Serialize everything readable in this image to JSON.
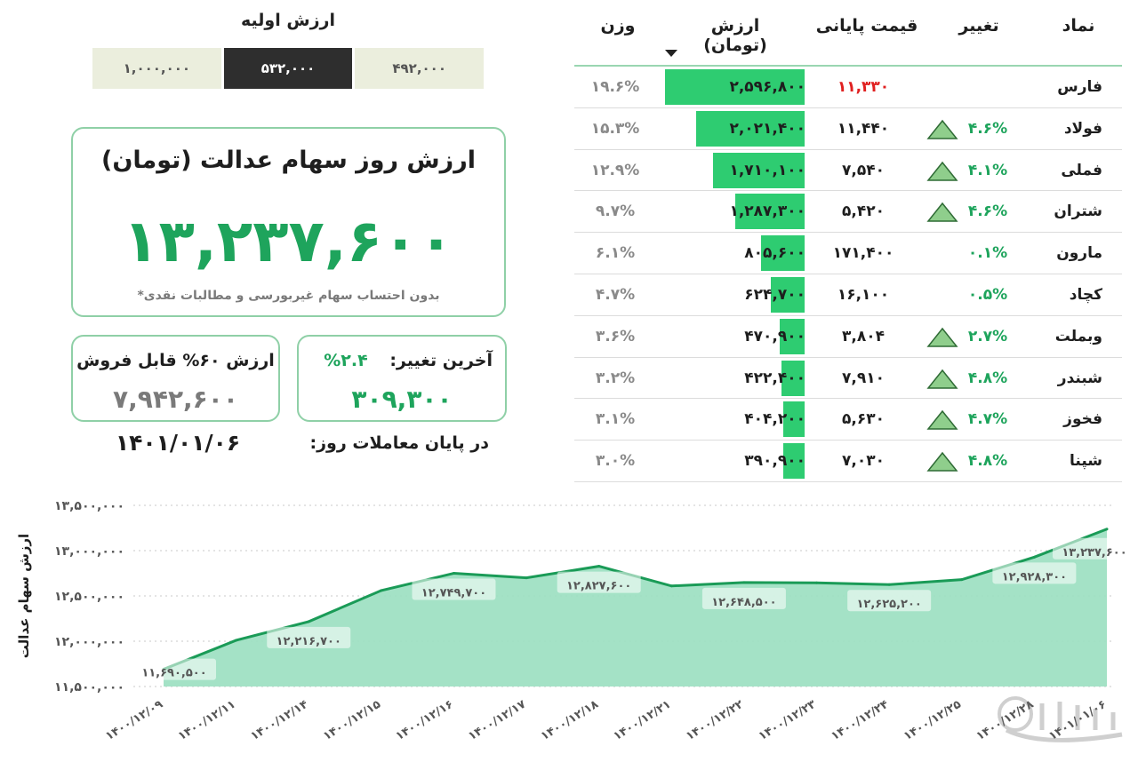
{
  "initial_value": {
    "title": "ارزش اولیه",
    "options": [
      "۱,۰۰۰,۰۰۰",
      "۵۳۲,۰۰۰",
      "۴۹۲,۰۰۰"
    ],
    "selected": "۵۳۲,۰۰۰"
  },
  "main_card": {
    "title": "ارزش روز سهام عدالت (تومان)",
    "value": "۱۳,۲۳۷,۶۰۰",
    "note": "*بدون احتساب سهام غیربورسی و مطالبات نقدی"
  },
  "change_card": {
    "label": "آخرین تغییر:",
    "percent": "۲.۴%",
    "value": "۳۰۹,۳۰۰"
  },
  "sellable_card": {
    "label": "ارزش ۶۰% قابل فروش",
    "value": "۷,۹۴۲,۶۰۰"
  },
  "end_of_day": {
    "label": "در پایان معاملات روز:",
    "date": "۱۴۰۱/۰۱/۰۶"
  },
  "table": {
    "headers": {
      "symbol": "نماد",
      "change": "تغییر",
      "close": "قیمت پایانی",
      "value": "ارزش (تومان)",
      "weight": "وزن"
    },
    "sorted_by": "value",
    "rows": [
      {
        "symbol": "فارس",
        "change": "",
        "arrow": false,
        "close": "۱۱,۳۳۰",
        "close_negative": true,
        "value": "۲,۵۹۶,۸۰۰",
        "value_num": 2596800,
        "weight": "۱۹.۶%"
      },
      {
        "symbol": "فولاد",
        "change": "۴.۶%",
        "arrow": true,
        "close": "۱۱,۴۴۰",
        "close_negative": false,
        "value": "۲,۰۲۱,۴۰۰",
        "value_num": 2021400,
        "weight": "۱۵.۳%"
      },
      {
        "symbol": "فملی",
        "change": "۴.۱%",
        "arrow": true,
        "close": "۷,۵۴۰",
        "close_negative": false,
        "value": "۱,۷۱۰,۱۰۰",
        "value_num": 1710100,
        "weight": "۱۲.۹%"
      },
      {
        "symbol": "شتران",
        "change": "۴.۶%",
        "arrow": true,
        "close": "۵,۴۲۰",
        "close_negative": false,
        "value": "۱,۲۸۷,۳۰۰",
        "value_num": 1287300,
        "weight": "۹.۷%"
      },
      {
        "symbol": "مارون",
        "change": "۰.۱%",
        "arrow": false,
        "close": "۱۷۱,۴۰۰",
        "close_negative": false,
        "value": "۸۰۵,۶۰۰",
        "value_num": 805600,
        "weight": "۶.۱%"
      },
      {
        "symbol": "کچاد",
        "change": "۰.۵%",
        "arrow": false,
        "close": "۱۶,۱۰۰",
        "close_negative": false,
        "value": "۶۲۴,۷۰۰",
        "value_num": 624700,
        "weight": "۴.۷%"
      },
      {
        "symbol": "وبملت",
        "change": "۲.۷%",
        "arrow": true,
        "close": "۳,۸۰۴",
        "close_negative": false,
        "value": "۴۷۰,۹۰۰",
        "value_num": 470900,
        "weight": "۳.۶%"
      },
      {
        "symbol": "شبندر",
        "change": "۴.۸%",
        "arrow": true,
        "close": "۷,۹۱۰",
        "close_negative": false,
        "value": "۴۲۲,۴۰۰",
        "value_num": 422400,
        "weight": "۳.۲%"
      },
      {
        "symbol": "فخوز",
        "change": "۴.۷%",
        "arrow": true,
        "close": "۵,۶۳۰",
        "close_negative": false,
        "value": "۴۰۴,۲۰۰",
        "value_num": 404200,
        "weight": "۳.۱%"
      },
      {
        "symbol": "شپنا",
        "change": "۴.۸%",
        "arrow": true,
        "close": "۷,۰۳۰",
        "close_negative": false,
        "value": "۳۹۰,۹۰۰",
        "value_num": 390900,
        "weight": "۳.۰%"
      }
    ]
  },
  "colors": {
    "accent_green": "#1ea45c",
    "bar_green": "#2ecc71",
    "line_green": "#1a9b57",
    "area_green": "#9fe0c3",
    "negative_red": "#e02020",
    "arrow_green": "#8fce8c"
  },
  "watermark": "ساعد نیوز",
  "chart_data": {
    "type": "area",
    "ylabel": "ارزش سهام عدالت",
    "ylim": [
      11500000,
      13500000
    ],
    "yticks": [
      11500000,
      12000000,
      12500000,
      13000000,
      13500000
    ],
    "ytick_labels": [
      "۱۱,۵۰۰,۰۰۰",
      "۱۲,۰۰۰,۰۰۰",
      "۱۲,۵۰۰,۰۰۰",
      "۱۳,۰۰۰,۰۰۰",
      "۱۳,۵۰۰,۰۰۰"
    ],
    "x": [
      "۱۴۰۰/۱۲/۰۹",
      "۱۴۰۰/۱۲/۱۱",
      "۱۴۰۰/۱۲/۱۴",
      "۱۴۰۰/۱۲/۱۵",
      "۱۴۰۰/۱۲/۱۶",
      "۱۴۰۰/۱۲/۱۷",
      "۱۴۰۰/۱۲/۱۸",
      "۱۴۰۰/۱۲/۲۱",
      "۱۴۰۰/۱۲/۲۲",
      "۱۴۰۰/۱۲/۲۳",
      "۱۴۰۰/۱۲/۲۴",
      "۱۴۰۰/۱۲/۲۵",
      "۱۴۰۰/۱۲/۲۸",
      "۱۴۰۱/۰۱/۰۶"
    ],
    "values": [
      11690500,
      12010000,
      12216700,
      12560000,
      12749700,
      12700000,
      12827600,
      12610000,
      12648500,
      12645000,
      12625200,
      12680000,
      12928300,
      13237600
    ],
    "data_labels": [
      {
        "index": 0,
        "text": "۱۱,۶۹۰,۵۰۰"
      },
      {
        "index": 2,
        "text": "۱۲,۲۱۶,۷۰۰"
      },
      {
        "index": 4,
        "text": "۱۲,۷۴۹,۷۰۰"
      },
      {
        "index": 6,
        "text": "۱۲,۸۲۷,۶۰۰"
      },
      {
        "index": 8,
        "text": "۱۲,۶۴۸,۵۰۰"
      },
      {
        "index": 10,
        "text": "۱۲,۶۲۵,۲۰۰"
      },
      {
        "index": 12,
        "text": "۱۲,۹۲۸,۳۰۰"
      },
      {
        "index": 13,
        "text": "۱۳,۲۳۷,۶۰۰"
      }
    ],
    "grid": "horizontal-dashed"
  }
}
